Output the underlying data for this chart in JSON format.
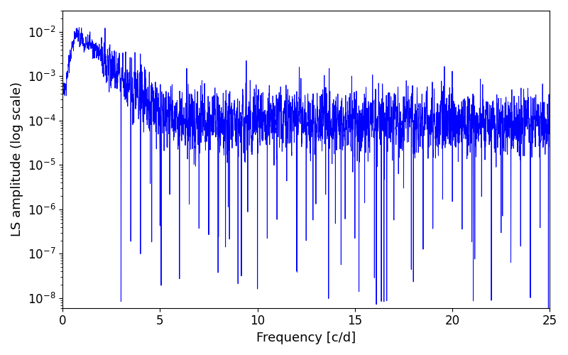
{
  "xlabel": "Frequency [c/d]",
  "ylabel": "LS amplitude (log scale)",
  "xlim": [
    0,
    25
  ],
  "ylim": [
    6e-09,
    0.03
  ],
  "line_color": "#0000ff",
  "line_width": 0.7,
  "background_color": "#ffffff",
  "tick_label_size": 12,
  "axis_label_size": 13,
  "figsize": [
    8.0,
    5.0
  ],
  "dpi": 100,
  "seed": 17,
  "n_points": 8000
}
